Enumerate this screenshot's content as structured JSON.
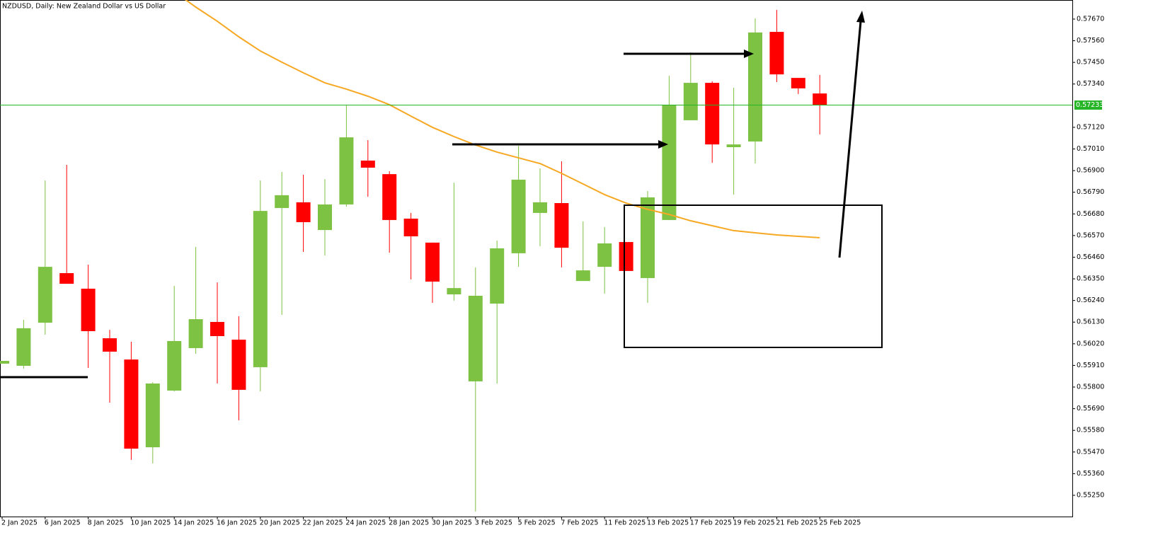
{
  "chart_data": {
    "type": "candlestick",
    "title": "NZDUSD, Daily:  New Zealand Dollar vs US Dollar",
    "categories": [
      "2 Jan 2025",
      null,
      "6 Jan 2025",
      null,
      "8 Jan 2025",
      null,
      "10 Jan 2025",
      null,
      "14 Jan 2025",
      null,
      "16 Jan 2025",
      null,
      "20 Jan 2025",
      null,
      "22 Jan 2025",
      null,
      "24 Jan 2025",
      null,
      "28 Jan 2025",
      null,
      "30 Jan 2025",
      null,
      "3 Feb 2025",
      null,
      "5 Feb 2025",
      null,
      "7 Feb 2025",
      null,
      "11 Feb 2025",
      null,
      "13 Feb 2025",
      null,
      "17 Feb 2025",
      null,
      "19 Feb 2025",
      null,
      "21 Feb 2025",
      null,
      "25 Feb 2025"
    ],
    "open": [
      0.55919,
      0.55908,
      0.56127,
      0.56379,
      0.563,
      0.56048,
      0.5594,
      0.55494,
      0.55782,
      0.55998,
      0.56131,
      0.56041,
      0.55901,
      0.5671,
      0.56739,
      0.56598,
      0.56728,
      0.56951,
      0.56882,
      0.56656,
      0.56534,
      0.56271,
      0.55829,
      0.56224,
      0.5648,
      0.56685,
      0.56735,
      0.56339,
      0.56411,
      0.56537,
      0.56354,
      0.56649,
      0.57156,
      0.57346,
      0.57019,
      0.57048,
      0.57605,
      0.57371,
      0.57292
    ],
    "high": [
      0.55933,
      0.56142,
      0.5685,
      0.56929,
      0.56422,
      0.56091,
      0.5603,
      0.55825,
      0.56314,
      0.56512,
      0.56332,
      0.5616,
      0.5685,
      0.56893,
      0.56879,
      0.56857,
      0.57235,
      0.57055,
      0.56897,
      0.56685,
      0.56534,
      0.56839,
      0.56408,
      0.56544,
      0.57026,
      0.56911,
      0.56947,
      0.56642,
      0.56613,
      0.56537,
      0.56796,
      0.57382,
      0.57501,
      0.57354,
      0.57321,
      0.57674,
      0.57717,
      0.57371,
      0.57386
    ],
    "low": [
      0.55919,
      0.55894,
      0.56066,
      0.56325,
      0.55897,
      0.55721,
      0.5543,
      0.55412,
      0.55778,
      0.55969,
      0.55818,
      0.55631,
      0.55778,
      0.56167,
      0.56487,
      0.56469,
      0.56717,
      0.56767,
      0.56483,
      0.56347,
      0.56228,
      0.56239,
      0.55167,
      0.55818,
      0.56411,
      0.56516,
      0.56408,
      0.56339,
      0.56275,
      0.5639,
      0.56228,
      0.56649,
      0.57156,
      0.5694,
      0.56778,
      0.56936,
      0.5735,
      0.57289,
      0.57084
    ],
    "close": [
      0.55933,
      0.56099,
      0.56411,
      0.56325,
      0.56084,
      0.5598,
      0.55487,
      0.55818,
      0.56034,
      0.56145,
      0.56059,
      0.55786,
      0.56695,
      0.56775,
      0.56638,
      0.56728,
      0.57069,
      0.56915,
      0.56649,
      0.56566,
      0.56336,
      0.56303,
      0.56264,
      0.56505,
      0.56854,
      0.56739,
      0.56508,
      0.56393,
      0.5653,
      0.5639,
      0.56764,
      0.57235,
      0.57346,
      0.57033,
      0.57033,
      0.57602,
      0.57389,
      0.57318,
      0.57233
    ],
    "up_color": "#7dc242",
    "down_color": "#ff0000",
    "moving_average": {
      "color": "#f7a823",
      "values": [
        null,
        null,
        null,
        null,
        null,
        null,
        null,
        null,
        0.5781,
        0.57731,
        0.57659,
        0.5758,
        0.57508,
        0.57451,
        0.57397,
        0.57346,
        0.57314,
        0.57278,
        0.57235,
        0.57177,
        0.5712,
        0.57073,
        0.5703,
        0.56994,
        0.56965,
        0.56936,
        0.56886,
        0.56832,
        0.56778,
        0.56735,
        0.56703,
        0.56677,
        0.56645,
        0.5662,
        0.56595,
        0.56584,
        0.56573,
        0.56566,
        0.56559
      ]
    },
    "price_line": {
      "value": 0.57233,
      "label": "0.57233",
      "color": "#26b526"
    },
    "ylim": [
      0.55142,
      0.57767
    ],
    "yticks": [
      {
        "value": 0.5767,
        "label": "0.57670"
      },
      {
        "value": 0.5756,
        "label": "0.57560"
      },
      {
        "value": 0.5745,
        "label": "0.57450"
      },
      {
        "value": 0.5734,
        "label": "0.57340"
      },
      {
        "value": 0.5712,
        "label": "0.57120"
      },
      {
        "value": 0.5701,
        "label": "0.57010"
      },
      {
        "value": 0.569,
        "label": "0.56900"
      },
      {
        "value": 0.5679,
        "label": "0.56790"
      },
      {
        "value": 0.5668,
        "label": "0.56680"
      },
      {
        "value": 0.5657,
        "label": "0.56570"
      },
      {
        "value": 0.5646,
        "label": "0.56460"
      },
      {
        "value": 0.5635,
        "label": "0.56350"
      },
      {
        "value": 0.5624,
        "label": "0.56240"
      },
      {
        "value": 0.5613,
        "label": "0.56130"
      },
      {
        "value": 0.5602,
        "label": "0.56020"
      },
      {
        "value": 0.5591,
        "label": "0.55910"
      },
      {
        "value": 0.558,
        "label": "0.55800"
      },
      {
        "value": 0.5569,
        "label": "0.55690"
      },
      {
        "value": 0.5558,
        "label": "0.55580"
      },
      {
        "value": 0.5547,
        "label": "0.55470"
      },
      {
        "value": 0.5536,
        "label": "0.55360"
      },
      {
        "value": 0.5525,
        "label": "0.55250"
      }
    ]
  }
}
